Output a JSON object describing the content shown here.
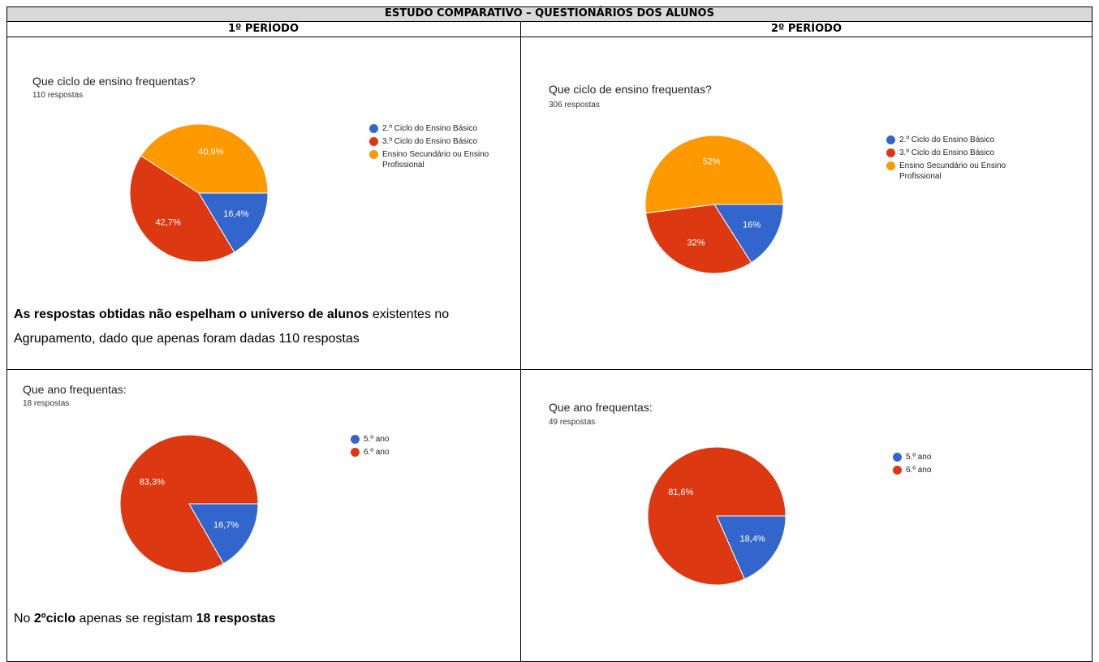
{
  "title": "ESTUDO COMPARATIVO – QUESTIONÁRIOS DOS ALUNOS",
  "columns": [
    "1º PERÍODO",
    "2º PERÍODO"
  ],
  "charts": [
    {
      "type": "pie",
      "title": "Que ciclo de ensino frequentas?",
      "subtitle": "110 respostas",
      "categories": [
        "2.º Ciclo do Ensino Básico",
        "3.º Ciclo do Ensino Básico",
        "Ensino Secundário ou Ensino Profissional"
      ],
      "values": [
        16.4,
        42.7,
        40.9
      ],
      "value_labels": [
        "16,4%",
        "42,7%",
        "40,9%"
      ],
      "colors": [
        "#3366cc",
        "#dc3912",
        "#ff9900"
      ]
    },
    {
      "type": "pie",
      "title": "Que ciclo de ensino frequentas?",
      "subtitle": "306 respostas",
      "categories": [
        "2.º Ciclo do Ensino Básico",
        "3.º Ciclo do Ensino Básico",
        "Ensino Secundário ou Ensino Profissional"
      ],
      "values": [
        16,
        32,
        52
      ],
      "value_labels": [
        "16%",
        "32%",
        "52%"
      ],
      "colors": [
        "#3366cc",
        "#dc3912",
        "#ff9900"
      ]
    },
    {
      "type": "pie",
      "title": "Que ano frequentas:",
      "subtitle": "18 respostas",
      "categories": [
        "5.º ano",
        "6.º ano"
      ],
      "values": [
        16.7,
        83.3
      ],
      "value_labels": [
        "16,7%",
        "83,3%"
      ],
      "colors": [
        "#3366cc",
        "#dc3912"
      ]
    },
    {
      "type": "pie",
      "title": "Que ano frequentas:",
      "subtitle": "49 respostas",
      "categories": [
        "5.º ano",
        "6.º ano"
      ],
      "values": [
        18.4,
        81.6
      ],
      "value_labels": [
        "18,4%",
        "81,6%"
      ],
      "colors": [
        "#3366cc",
        "#dc3912"
      ]
    }
  ],
  "notes": [
    [
      {
        "text": "As respostas obtidas não espelham o universo de alunos",
        "bold": true
      },
      {
        "text": " existentes no Agrupamento, dado que apenas foram dadas 110 respostas",
        "bold": false
      }
    ],
    [
      {
        "text": "No ",
        "bold": false
      },
      {
        "text": "2ºciclo",
        "bold": true
      },
      {
        "text": " apenas se registam ",
        "bold": false
      },
      {
        "text": "18 respostas",
        "bold": true
      }
    ]
  ]
}
